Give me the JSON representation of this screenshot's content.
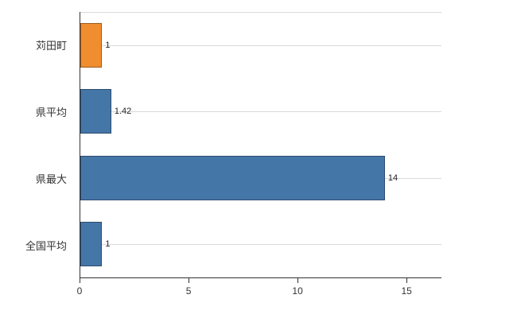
{
  "chart_data": {
    "type": "bar",
    "orientation": "horizontal",
    "title": "",
    "xlabel": "",
    "ylabel": "",
    "categories": [
      "苅田町",
      "県平均",
      "県最大",
      "全国平均"
    ],
    "values": [
      1,
      1.42,
      14,
      1
    ],
    "value_labels": [
      "1",
      "1.42",
      "14",
      "1"
    ],
    "bar_colors": [
      "#ef8d2f",
      "#4576a8",
      "#4576a8",
      "#4576a8"
    ],
    "x_ticks": [
      0,
      5,
      10,
      15
    ],
    "x_tick_labels": [
      "0",
      "5",
      "10",
      "15"
    ],
    "xlim": [
      0,
      16.6
    ],
    "grid": "horizontal-light",
    "legend": "none"
  },
  "colors": {
    "blue": "#4576a8",
    "orange": "#ef8d2f",
    "grid": "#d9d9d9",
    "axis": "#333333",
    "background": "#ffffff"
  }
}
